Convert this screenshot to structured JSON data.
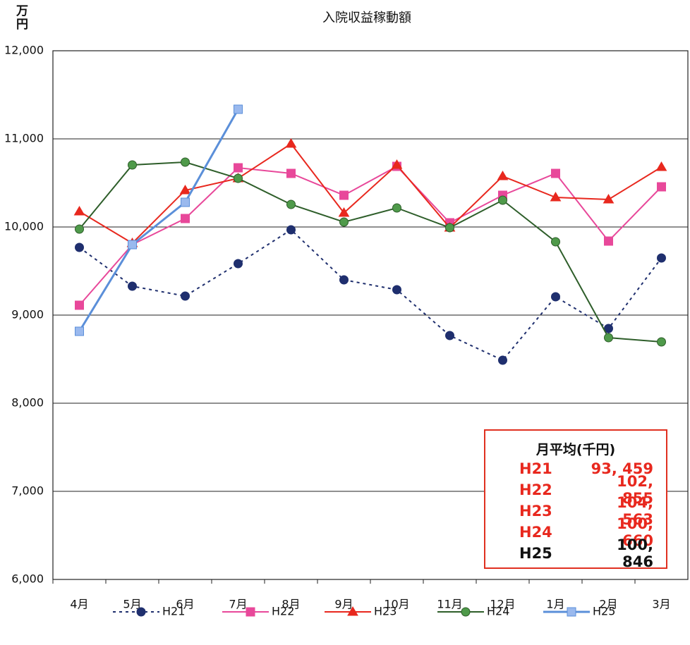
{
  "chart_data": {
    "type": "line",
    "title": "入院収益稼動額",
    "ylabel": "万円",
    "categories": [
      "4月",
      "5月",
      "6月",
      "7月",
      "8月",
      "9月",
      "10月",
      "11月",
      "12月",
      "1月",
      "2月",
      "3月"
    ],
    "series": [
      {
        "name": "H21",
        "color": "#1f2f6e",
        "marker": "circle",
        "dashed": true,
        "values": [
          9768,
          9328,
          9216,
          9584,
          9968,
          9400,
          9288,
          8768,
          8488,
          9208,
          8848,
          9648
        ]
      },
      {
        "name": "H22",
        "color": "#e8489a",
        "marker": "square",
        "values": [
          9112,
          9800,
          10096,
          10672,
          10608,
          10360,
          10688,
          10048,
          10360,
          10608,
          9840,
          10456
        ]
      },
      {
        "name": "H23",
        "color": "#e8281e",
        "marker": "triangle",
        "values": [
          10176,
          9816,
          10416,
          10552,
          10944,
          10160,
          10704,
          9992,
          10576,
          10336,
          10312,
          10680
        ]
      },
      {
        "name": "H24",
        "color": "#2e5e2a",
        "marker": "circle",
        "marker_color": "#4f9a4a",
        "values": [
          9976,
          10704,
          10736,
          10552,
          10256,
          10056,
          10216,
          9992,
          10304,
          9832,
          8744,
          8696
        ]
      },
      {
        "name": "H25",
        "color": "#5b8fd9",
        "marker": "square",
        "marker_color": "#9ab9ee",
        "values": [
          8816,
          9800,
          10280,
          11336,
          null,
          null,
          null,
          null,
          null,
          null,
          null,
          null
        ]
      }
    ],
    "ylim": [
      6000,
      12000
    ],
    "yticks": [
      {
        "value": 6000,
        "label": "6,000"
      },
      {
        "value": 7000,
        "label": "7,000"
      },
      {
        "value": 8000,
        "label": "8,000"
      },
      {
        "value": 9000,
        "label": "9,000"
      },
      {
        "value": 10000,
        "label": "10,000"
      },
      {
        "value": 11000,
        "label": "11,000"
      },
      {
        "value": 12000,
        "label": "12,000"
      }
    ],
    "grid": true,
    "average_table": {
      "title": "月平均(千円)",
      "rows": [
        [
          "H21",
          "93, 459"
        ],
        [
          "H22",
          "102, 855"
        ],
        [
          "H23",
          "104, 563"
        ],
        [
          "H24",
          "100, 660"
        ],
        [
          "H25",
          "100, 846"
        ]
      ]
    }
  }
}
